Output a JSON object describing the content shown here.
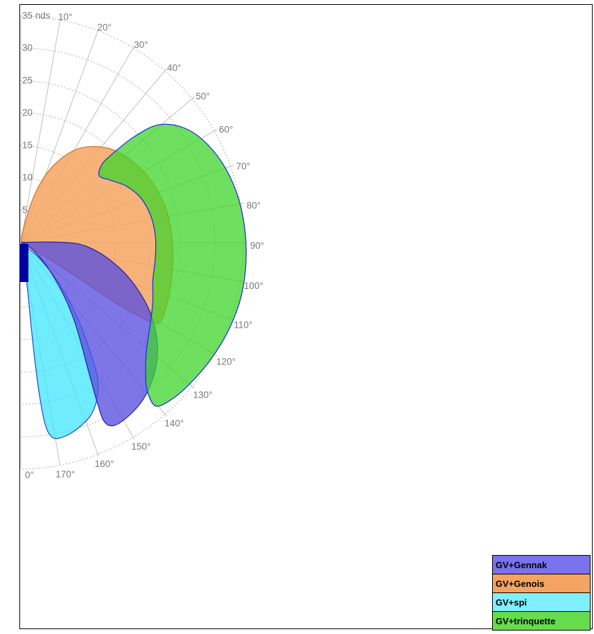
{
  "chart": {
    "frame_color": "#000000",
    "grid_color": "#b0b0b0",
    "arc_color": "#999999",
    "text_color": "#7a7a7a",
    "center_marker_color": "#0000a0"
  },
  "chart_data": {
    "type": "area",
    "coordinates": "polar",
    "angle_axis": {
      "range_deg": [
        0,
        180
      ],
      "tick_step_deg": 10,
      "ticks": [
        {
          "angle": 10,
          "label": "10°"
        },
        {
          "angle": 20,
          "label": "20°"
        },
        {
          "angle": 30,
          "label": "30°"
        },
        {
          "angle": 40,
          "label": "40°"
        },
        {
          "angle": 50,
          "label": "50°"
        },
        {
          "angle": 60,
          "label": "60°"
        },
        {
          "angle": 70,
          "label": "70°"
        },
        {
          "angle": 80,
          "label": "80°"
        },
        {
          "angle": 90,
          "label": "90°"
        },
        {
          "angle": 100,
          "label": "100°"
        },
        {
          "angle": 110,
          "label": "110°"
        },
        {
          "angle": 120,
          "label": "120°"
        },
        {
          "angle": 130,
          "label": "130°"
        },
        {
          "angle": 140,
          "label": "140°"
        },
        {
          "angle": 150,
          "label": "150°"
        },
        {
          "angle": 160,
          "label": "160°"
        },
        {
          "angle": 170,
          "label": "170°"
        },
        {
          "angle": 180,
          "label": "0°"
        }
      ]
    },
    "radial_axis": {
      "range": [
        0,
        35
      ],
      "unit_suffix": "nds",
      "ticks": [
        5,
        10,
        15,
        20,
        25,
        30,
        35
      ],
      "tick_labels": [
        "5",
        "10",
        "15",
        "20",
        "25",
        "30",
        "35 nds"
      ]
    },
    "series": [
      {
        "id": "gv-genois",
        "name": "GV+Genois",
        "fill": "#F4A460",
        "fill_opacity": 0.85,
        "stroke": "#C87830",
        "points": [
          [
            10,
            0.4
          ],
          [
            13,
            4
          ],
          [
            16,
            7.5
          ],
          [
            20,
            11
          ],
          [
            25,
            14
          ],
          [
            31,
            16.8
          ],
          [
            38,
            18.8
          ],
          [
            45,
            20.2
          ],
          [
            54,
            21.3
          ],
          [
            64,
            22.2
          ],
          [
            75,
            22.9
          ],
          [
            86,
            23.3
          ],
          [
            96,
            23.6
          ],
          [
            105,
            24
          ],
          [
            112,
            24.4
          ],
          [
            118,
            24.8
          ],
          [
            121,
            24.2
          ],
          [
            122,
            21
          ],
          [
            122.5,
            17
          ],
          [
            122,
            12
          ],
          [
            121,
            7
          ],
          [
            118.5,
            2.5
          ],
          [
            114,
            0.6
          ]
        ]
      },
      {
        "id": "gv-spi",
        "name": "GV+spi",
        "fill": "#40E6FF",
        "fill_opacity": 0.75,
        "stroke": "#2850C8",
        "points": [
          [
            124,
            0.4
          ],
          [
            130,
            3.5
          ],
          [
            135,
            7
          ],
          [
            139,
            10.5
          ],
          [
            143,
            14.5
          ],
          [
            146.5,
            18.5
          ],
          [
            150,
            23.5
          ],
          [
            153.5,
            26.5
          ],
          [
            157.5,
            28.6
          ],
          [
            162,
            29.8
          ],
          [
            166.5,
            30.6
          ],
          [
            170.5,
            30.6
          ],
          [
            172.3,
            28.5
          ],
          [
            173,
            24
          ],
          [
            173.2,
            19
          ],
          [
            173,
            13.5
          ],
          [
            172,
            8
          ],
          [
            170,
            3.5
          ],
          [
            165,
            1.2
          ],
          [
            150,
            0.5
          ],
          [
            136,
            0.4
          ]
        ]
      },
      {
        "id": "gv-gennak",
        "name": "GV+Gennak",
        "fill": "#5A50E0",
        "fill_opacity": 0.78,
        "stroke": "#2828A0",
        "points": [
          [
            87,
            0.4
          ],
          [
            89,
            4.5
          ],
          [
            91,
            8.5
          ],
          [
            95,
            11
          ],
          [
            100,
            13.5
          ],
          [
            106,
            16.5
          ],
          [
            112,
            19.5
          ],
          [
            118,
            22.5
          ],
          [
            124,
            25.2
          ],
          [
            130,
            27.5
          ],
          [
            136,
            29.3
          ],
          [
            142,
            30.7
          ],
          [
            148,
            31.5
          ],
          [
            153,
            31.7
          ],
          [
            155,
            30.5
          ],
          [
            154.5,
            27.5
          ],
          [
            152,
            22
          ],
          [
            149,
            18
          ],
          [
            145.5,
            14.5
          ],
          [
            141.5,
            11
          ],
          [
            136.5,
            7.5
          ],
          [
            130,
            4.5
          ],
          [
            122,
            2.2
          ],
          [
            110,
            0.8
          ],
          [
            98,
            0.4
          ]
        ]
      },
      {
        "id": "gv-trinquette",
        "name": "GV+trinquette",
        "fill": "#3FD42A",
        "fill_opacity": 0.75,
        "stroke": "#1E32E6",
        "points": [
          [
            46,
            20
          ],
          [
            47,
            24
          ],
          [
            49.5,
            28
          ],
          [
            55,
            30.8
          ],
          [
            62,
            32.5
          ],
          [
            71,
            33.7
          ],
          [
            81,
            34.4
          ],
          [
            92,
            34.8
          ],
          [
            103,
            35
          ],
          [
            113,
            34.8
          ],
          [
            122,
            34.4
          ],
          [
            130,
            34
          ],
          [
            136,
            33.6
          ],
          [
            140.5,
            32.7
          ],
          [
            139.5,
            30
          ],
          [
            136.5,
            28
          ],
          [
            132,
            26
          ],
          [
            127,
            24.6
          ],
          [
            121,
            23.4
          ],
          [
            114,
            22.3
          ],
          [
            106,
            21.2
          ],
          [
            97,
            20.9
          ],
          [
            88,
            20.8
          ],
          [
            79,
            20.5
          ],
          [
            70,
            19.8
          ],
          [
            62,
            18.5
          ],
          [
            55,
            16.8
          ],
          [
            49.5,
            15.9
          ],
          [
            46,
            17.5
          ]
        ]
      }
    ],
    "legend_position": "bottom-right"
  },
  "legend": {
    "items": [
      {
        "label": "GV+Gennak",
        "color": "#7B72EE"
      },
      {
        "label": "GV+Genois",
        "color": "#F4A460"
      },
      {
        "label": "GV+spi",
        "color": "#7FF0FF"
      },
      {
        "label": "GV+trinquette",
        "color": "#66DC4B"
      }
    ]
  }
}
